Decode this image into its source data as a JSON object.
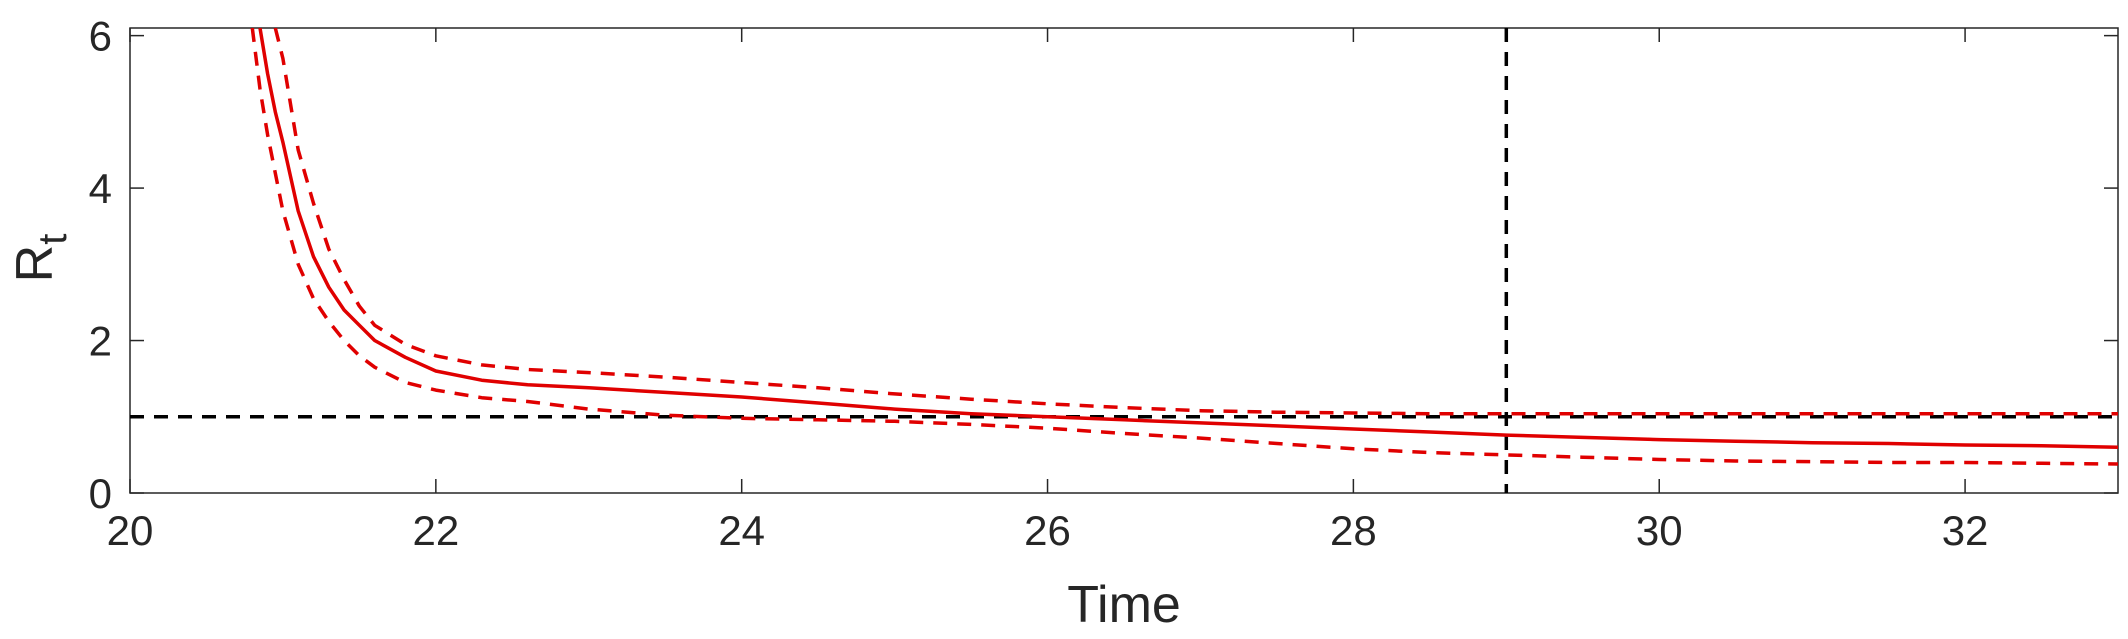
{
  "chart_data": {
    "type": "line",
    "xlabel": "Time",
    "ylabel": "R",
    "ylabel_subscript": "t",
    "xlim": [
      20,
      33
    ],
    "ylim": [
      0,
      6.1
    ],
    "x_ticks": [
      20,
      22,
      24,
      26,
      28,
      30,
      32
    ],
    "y_ticks": [
      0,
      2,
      4,
      6
    ],
    "grid": false,
    "colors": {
      "series": "#e00000",
      "reference": "#000000",
      "axis": "#262626"
    },
    "series": [
      {
        "role": "estimate",
        "style": "solid",
        "x": [
          20.85,
          20.9,
          20.95,
          21.0,
          21.1,
          21.2,
          21.3,
          21.4,
          21.5,
          21.6,
          21.8,
          22.0,
          22.3,
          22.6,
          23.0,
          23.5,
          24.0,
          24.5,
          25.0,
          25.5,
          26.0,
          26.5,
          27.0,
          27.5,
          28.0,
          28.5,
          29.0,
          29.5,
          30.0,
          30.5,
          31.0,
          31.5,
          32.0,
          32.5,
          33.0
        ],
        "y": [
          6.1,
          5.5,
          5.0,
          4.6,
          3.7,
          3.1,
          2.7,
          2.4,
          2.2,
          2.0,
          1.78,
          1.6,
          1.48,
          1.42,
          1.38,
          1.32,
          1.26,
          1.18,
          1.1,
          1.04,
          1.0,
          0.96,
          0.92,
          0.88,
          0.84,
          0.8,
          0.76,
          0.73,
          0.7,
          0.68,
          0.66,
          0.65,
          0.63,
          0.62,
          0.6
        ]
      },
      {
        "role": "upper bound",
        "style": "dashed",
        "x": [
          20.95,
          21.0,
          21.1,
          21.2,
          21.3,
          21.4,
          21.5,
          21.6,
          21.8,
          22.0,
          22.3,
          22.6,
          23.0,
          23.5,
          24.0,
          24.5,
          25.0,
          25.5,
          26.0,
          26.5,
          27.0,
          27.5,
          28.0,
          28.5,
          29.0,
          29.5,
          30.0,
          30.5,
          31.0,
          31.5,
          32.0,
          32.5,
          33.0
        ],
        "y": [
          6.1,
          5.7,
          4.5,
          3.8,
          3.2,
          2.8,
          2.45,
          2.2,
          1.95,
          1.8,
          1.68,
          1.62,
          1.58,
          1.52,
          1.45,
          1.38,
          1.3,
          1.23,
          1.17,
          1.12,
          1.08,
          1.06,
          1.05,
          1.04,
          1.04,
          1.04,
          1.04,
          1.04,
          1.04,
          1.04,
          1.04,
          1.04,
          1.04
        ]
      },
      {
        "role": "lower bound",
        "style": "dashed",
        "x": [
          20.8,
          20.85,
          20.9,
          21.0,
          21.1,
          21.2,
          21.3,
          21.4,
          21.5,
          21.6,
          21.8,
          22.0,
          22.3,
          22.6,
          23.0,
          23.5,
          24.0,
          24.5,
          25.0,
          25.5,
          26.0,
          26.5,
          27.0,
          27.5,
          28.0,
          28.5,
          29.0,
          29.5,
          30.0,
          30.5,
          31.0,
          31.5,
          32.0,
          32.5,
          33.0
        ],
        "y": [
          6.1,
          5.3,
          4.7,
          3.7,
          3.0,
          2.55,
          2.25,
          2.0,
          1.8,
          1.65,
          1.45,
          1.35,
          1.25,
          1.2,
          1.1,
          1.02,
          0.98,
          0.96,
          0.94,
          0.9,
          0.85,
          0.78,
          0.72,
          0.65,
          0.58,
          0.53,
          0.5,
          0.47,
          0.44,
          0.42,
          0.41,
          0.4,
          0.4,
          0.39,
          0.38
        ]
      }
    ],
    "reference_lines": [
      {
        "orientation": "horizontal",
        "value": 1,
        "style": "dashed",
        "color": "#000000"
      },
      {
        "orientation": "vertical",
        "value": 29,
        "style": "dashed",
        "color": "#000000"
      }
    ]
  }
}
